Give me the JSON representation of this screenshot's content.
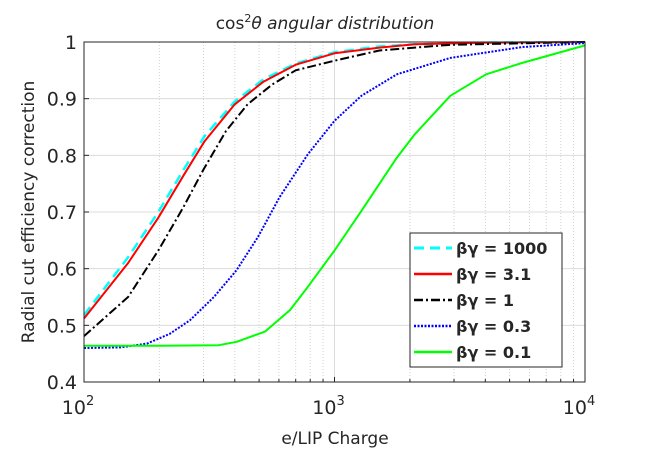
{
  "chart_data": {
    "type": "line",
    "title": "cos",
    "title_superscript": "2",
    "title_rest": "θ angular distribution",
    "xlabel": "e/LIP Charge",
    "ylabel": "Radial cut efficiency correction",
    "xscale": "log",
    "xlim": [
      100,
      10000
    ],
    "ylim": [
      0.4,
      1.0
    ],
    "xticks": [
      100,
      1000,
      10000
    ],
    "xtick_labels": [
      {
        "base": "10",
        "exp": "2"
      },
      {
        "base": "10",
        "exp": "3"
      },
      {
        "base": "10",
        "exp": "4"
      }
    ],
    "yticks": [
      0.4,
      0.5,
      0.6,
      0.7,
      0.8,
      0.9,
      1.0
    ],
    "ytick_labels": [
      "0.4",
      "0.5",
      "0.6",
      "0.7",
      "0.8",
      "0.9",
      "1"
    ],
    "grid": true,
    "legend_position": "lower-right",
    "series": [
      {
        "name": "βγ = 1000",
        "color": "#00ffff",
        "dash": "dashed",
        "x": [
          100,
          150,
          198,
          250,
          303,
          400,
          520,
          700,
          1000,
          1500,
          2090,
          4000,
          10000
        ],
        "y": [
          0.518,
          0.62,
          0.7,
          0.775,
          0.834,
          0.895,
          0.934,
          0.962,
          0.982,
          0.992,
          0.996,
          0.999,
          1.0
        ]
      },
      {
        "name": "βγ = 3.1",
        "color": "#ff0000",
        "dash": "solid",
        "x": [
          100,
          150,
          198,
          250,
          303,
          400,
          520,
          700,
          1000,
          1500,
          2090,
          4000,
          10000
        ],
        "y": [
          0.512,
          0.61,
          0.69,
          0.765,
          0.825,
          0.89,
          0.93,
          0.96,
          0.98,
          0.99,
          0.996,
          0.999,
          1.0
        ]
      },
      {
        "name": "βγ = 1",
        "color": "#000000",
        "dash": "dashdot",
        "x": [
          100,
          150,
          198,
          249,
          300,
          369,
          450,
          564,
          700,
          1000,
          1510,
          2900,
          10000
        ],
        "y": [
          0.481,
          0.55,
          0.632,
          0.708,
          0.775,
          0.843,
          0.89,
          0.925,
          0.95,
          0.967,
          0.985,
          0.995,
          1.0
        ]
      },
      {
        "name": "βγ = 0.3",
        "color": "#0000ff",
        "dash": "dotted",
        "x": [
          100,
          140,
          179,
          220,
          265,
          330,
          406,
          495,
          603,
          783,
          1000,
          1280,
          1775,
          2903,
          5600,
          10000
        ],
        "y": [
          0.46,
          0.461,
          0.468,
          0.485,
          0.509,
          0.55,
          0.597,
          0.656,
          0.726,
          0.802,
          0.861,
          0.905,
          0.943,
          0.972,
          0.991,
          0.998
        ]
      },
      {
        "name": "βγ = 0.1",
        "color": "#00ff00",
        "dash": "solid",
        "x": [
          100,
          200,
          345,
          407,
          528,
          665,
          783,
          1000,
          1280,
          1775,
          2090,
          2900,
          4030,
          5600,
          10000
        ],
        "y": [
          0.464,
          0.464,
          0.465,
          0.471,
          0.489,
          0.527,
          0.568,
          0.632,
          0.702,
          0.796,
          0.837,
          0.905,
          0.943,
          0.963,
          0.994
        ]
      }
    ]
  }
}
